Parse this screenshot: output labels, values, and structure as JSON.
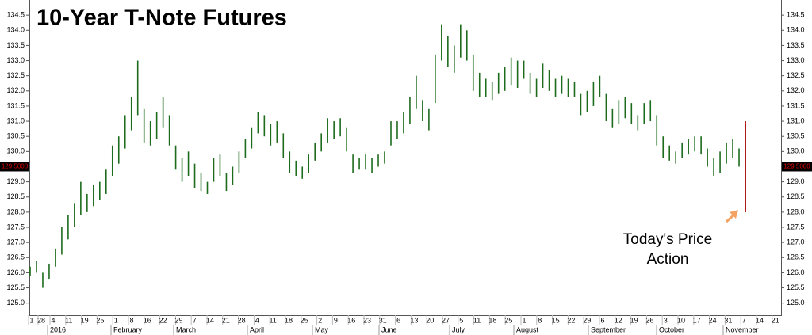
{
  "chart_data": {
    "type": "ohlc",
    "title": "10-Year T-Note Futures",
    "annotation": [
      "Today's Price",
      "Action"
    ],
    "last_price": {
      "value": 129.5,
      "label": "129.5000"
    },
    "color": "#1d6b1d",
    "last_bar_color": "#b01818",
    "arrow_color": "#f4a261",
    "ylim": [
      124.6,
      135.0
    ],
    "yticks": [
      {
        "value": 125,
        "label": "125.0"
      },
      125.5,
      {
        "value": 126,
        "label": "126.0"
      },
      126.5,
      {
        "value": 127,
        "label": "127.0"
      },
      127.5,
      {
        "value": 128,
        "label": "128.0"
      },
      128.5,
      {
        "value": 129,
        "label": "129.0"
      },
      129.5,
      {
        "value": 130,
        "label": "130.0"
      },
      130.5,
      {
        "value": 131,
        "label": "131.0"
      },
      131.5,
      {
        "value": 132,
        "label": "132.0"
      },
      132.5,
      {
        "value": 133,
        "label": "133.0"
      },
      133.5,
      {
        "value": 134,
        "label": "134.0"
      },
      134.5
    ],
    "x_labels": [
      "1",
      "28",
      "4",
      "11",
      "19",
      "25",
      "1",
      "8",
      "16",
      "22",
      "29",
      "7",
      "14",
      "21",
      "28",
      "4",
      "11",
      "18",
      "25",
      "2",
      "9",
      "16",
      "23",
      "31",
      "6",
      "13",
      "20",
      "27",
      "5",
      "11",
      "18",
      "25",
      "1",
      "8",
      "15",
      "22",
      "29",
      "6",
      "12",
      "19",
      "26",
      "3",
      "10",
      "17",
      "24",
      "31",
      "7",
      "14",
      "21"
    ],
    "month_labels": [
      "2016",
      "February",
      "March",
      "April",
      "May",
      "June",
      "July",
      "August",
      "September",
      "October",
      "November"
    ],
    "high": [
      126.2,
      126.4,
      126.0,
      126.3,
      126.8,
      127.5,
      127.9,
      128.3,
      129.0,
      128.6,
      128.9,
      129.0,
      129.4,
      130.2,
      130.5,
      131.2,
      131.8,
      133.0,
      131.4,
      131.0,
      131.3,
      131.8,
      131.2,
      130.2,
      129.8,
      130.0,
      129.6,
      129.3,
      129.0,
      129.8,
      129.9,
      129.3,
      129.5,
      130.0,
      130.4,
      130.8,
      131.3,
      131.2,
      130.9,
      131.0,
      130.6,
      130.0,
      129.7,
      129.5,
      129.9,
      130.3,
      130.6,
      131.1,
      131.0,
      131.1,
      130.8,
      129.9,
      129.8,
      129.9,
      129.8,
      129.9,
      130.0,
      131.0,
      131.0,
      131.3,
      131.8,
      132.5,
      131.7,
      131.4,
      133.2,
      134.2,
      133.8,
      133.5,
      134.2,
      134.0,
      133.2,
      132.6,
      132.4,
      132.3,
      132.6,
      132.8,
      133.1,
      133.0,
      133.0,
      132.6,
      132.4,
      132.9,
      132.7,
      132.4,
      132.5,
      132.4,
      132.3,
      131.9,
      132.0,
      132.3,
      132.5,
      131.9,
      131.4,
      131.7,
      131.8,
      131.6,
      131.2,
      131.6,
      131.7,
      131.2,
      130.5,
      130.2,
      130.0,
      130.3,
      130.4,
      130.5,
      130.5,
      130.1,
      129.8,
      130.0,
      130.3,
      130.4,
      130.1,
      131.0
    ],
    "low": [
      125.9,
      126.0,
      125.5,
      125.8,
      126.2,
      126.6,
      127.1,
      127.5,
      127.9,
      128.0,
      128.2,
      128.4,
      128.6,
      129.2,
      129.6,
      130.1,
      130.7,
      131.2,
      130.3,
      130.2,
      130.4,
      130.8,
      130.2,
      129.4,
      129.0,
      129.2,
      128.8,
      128.7,
      128.6,
      129.0,
      129.2,
      128.7,
      128.9,
      129.3,
      129.8,
      130.1,
      130.6,
      130.5,
      130.2,
      130.3,
      129.8,
      129.3,
      129.2,
      129.1,
      129.3,
      129.7,
      130.0,
      130.3,
      130.4,
      130.5,
      130.0,
      129.3,
      129.4,
      129.4,
      129.3,
      129.5,
      129.6,
      130.2,
      130.4,
      130.6,
      130.9,
      131.4,
      131.0,
      130.7,
      131.6,
      133.0,
      132.8,
      132.6,
      133.1,
      133.0,
      132.0,
      131.8,
      131.8,
      131.7,
      131.9,
      132.0,
      132.2,
      132.1,
      132.4,
      131.9,
      131.8,
      132.1,
      132.0,
      131.8,
      131.9,
      131.8,
      131.8,
      131.2,
      131.3,
      131.5,
      131.8,
      131.0,
      130.8,
      130.9,
      131.1,
      130.9,
      130.7,
      130.9,
      131.0,
      130.2,
      129.8,
      129.7,
      129.6,
      129.8,
      129.9,
      130.0,
      129.9,
      129.5,
      129.2,
      129.3,
      129.6,
      129.8,
      129.5,
      128.0
    ]
  }
}
